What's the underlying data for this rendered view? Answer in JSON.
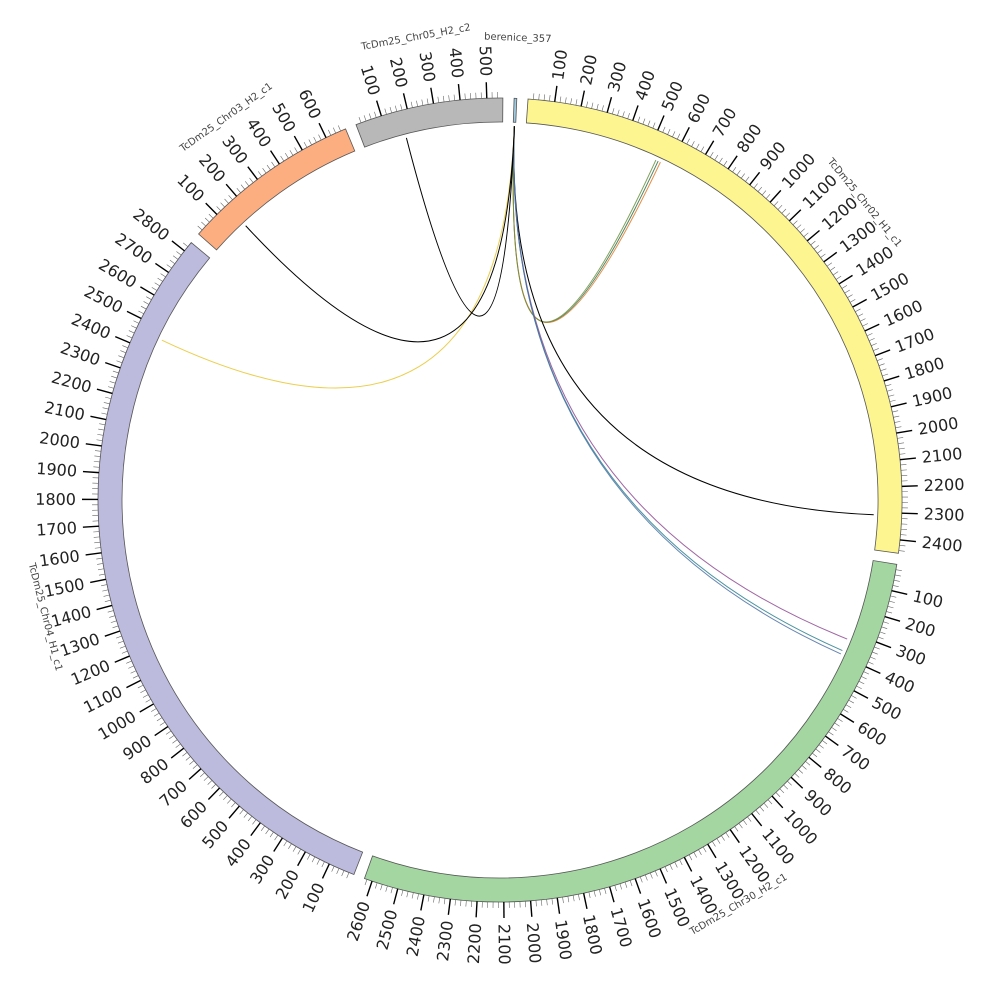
{
  "chart_data": {
    "type": "chord",
    "title": "",
    "tick_step": 100,
    "segments": [
      {
        "id": "tcdm25-chr02-h1-c1",
        "name": "TcDm25_Chr02_H1_c1",
        "length": 2450,
        "color": "#fdf590"
      },
      {
        "id": "tcdm25-chr30-h2-c1",
        "name": "TcDm25_Chr30_H2_c1",
        "length": 2630,
        "color": "#a3d6a1"
      },
      {
        "id": "tcdm25-chr04-h1-c1",
        "name": "TcDm25_Chr04_H1_c1",
        "length": 2840,
        "color": "#bdbbdd"
      },
      {
        "id": "tcdm25-chr03-h2-c1",
        "name": "TcDm25_Chr03_H2_c1",
        "length": 680,
        "color": "#fdae80"
      },
      {
        "id": "tcdm25-chr05-h2-c2",
        "name": "TcDm25_Chr05_H2_c2",
        "length": 560,
        "color": "#b8b8b8"
      },
      {
        "id": "berenice-357",
        "name": "berenice_357",
        "length": 10,
        "color": "#9ecae1"
      }
    ],
    "links": [
      {
        "source": "berenice-357",
        "target": "tcdm25-chr02-h1-c1",
        "target_pos": 550,
        "color": "#2f6e4e",
        "width": 3
      },
      {
        "source": "berenice-357",
        "target": "tcdm25-chr02-h1-c1",
        "target_pos": 560,
        "color": "#e07b2a",
        "width": 2
      },
      {
        "source": "berenice-357",
        "target": "tcdm25-chr02-h1-c1",
        "target_pos": 540,
        "color": "#6a8f3a",
        "width": 2
      },
      {
        "source": "berenice-357",
        "target": "tcdm25-chr02-h1-c1",
        "target_pos": 2310,
        "color": "#000000",
        "width": 0.8
      },
      {
        "source": "berenice-357",
        "target": "tcdm25-chr30-h2-c1",
        "target_pos": 330,
        "color": "#8e4a93",
        "width": 4
      },
      {
        "source": "berenice-357",
        "target": "tcdm25-chr30-h2-c1",
        "target_pos": 380,
        "color": "#2a7f8f",
        "width": 4
      },
      {
        "source": "berenice-357",
        "target": "tcdm25-chr30-h2-c1",
        "target_pos": 395,
        "color": "#4a6fa5",
        "width": 3
      },
      {
        "source": "berenice-357",
        "target": "tcdm25-chr04-h1-c1",
        "target_pos": 2460,
        "color": "#e8c62e",
        "width": 4
      },
      {
        "source": "berenice-357",
        "target": "tcdm25-chr03-h2-c1",
        "target_pos": 150,
        "color": "#000000",
        "width": 0.8
      },
      {
        "source": "berenice-357",
        "target": "tcdm25-chr05-h2-c2",
        "target_pos": 170,
        "color": "#000000",
        "width": 0.8
      }
    ]
  }
}
